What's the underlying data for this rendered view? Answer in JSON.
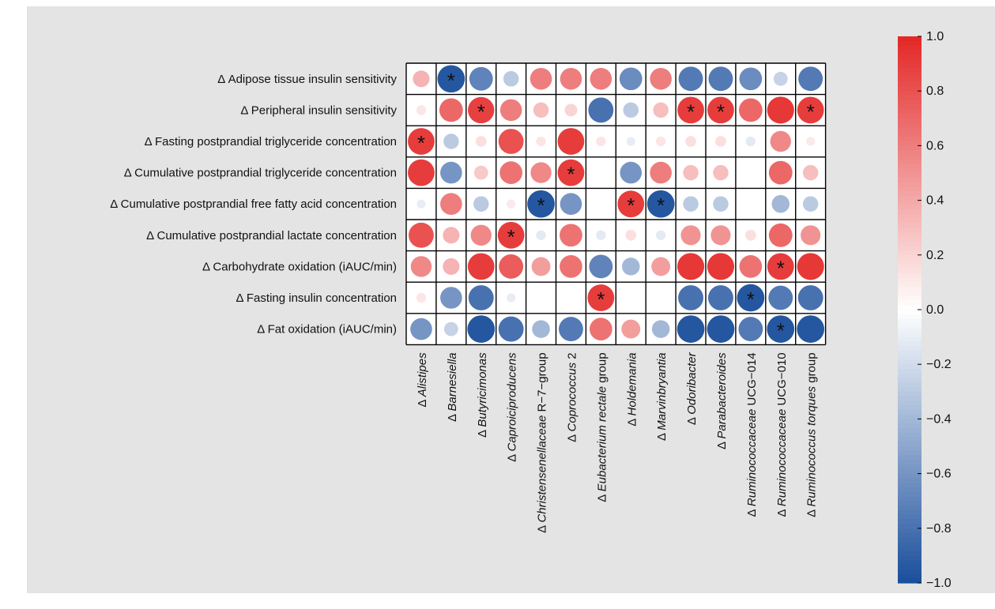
{
  "chart_data": {
    "type": "heatmap",
    "title": "",
    "rows": [
      "Δ Adipose tissue insulin sensitivity",
      "Δ Peripheral insulin sensitivity",
      "Δ Fasting postprandial triglyceride concentration",
      "Δ Cumulative postprandial triglyceride concentration",
      "Δ Cumulative postprandial free fatty acid concentration",
      "Δ Cumulative postprandial lactate concentration",
      "Δ Carbohydrate oxidation (iAUC/min)",
      "Δ Fasting insulin concentration",
      "Δ Fat oxidation (iAUC/min)"
    ],
    "columns": [
      {
        "prefix": "Δ ",
        "italic": "Alistipes",
        "suffix": ""
      },
      {
        "prefix": "Δ ",
        "italic": "Barnesiella",
        "suffix": ""
      },
      {
        "prefix": "Δ ",
        "italic": "Butyricimonas",
        "suffix": ""
      },
      {
        "prefix": "Δ ",
        "italic": "Caproiciproducens",
        "suffix": ""
      },
      {
        "prefix": "Δ ",
        "italic": "Christensenellaceae",
        "suffix": " R−7−group"
      },
      {
        "prefix": "Δ ",
        "italic": "Coprococcus",
        "suffix": " 2"
      },
      {
        "prefix": "Δ ",
        "italic": "Eubacterium rectale",
        "suffix": " group"
      },
      {
        "prefix": "Δ ",
        "italic": "Holdemania",
        "suffix": ""
      },
      {
        "prefix": "Δ ",
        "italic": "Marvinbryantia",
        "suffix": ""
      },
      {
        "prefix": "Δ ",
        "italic": "Odoribacter",
        "suffix": ""
      },
      {
        "prefix": "Δ ",
        "italic": "Parabacteroides",
        "suffix": ""
      },
      {
        "prefix": "Δ ",
        "italic": "Ruminococcaceae",
        "suffix": " UCG−014"
      },
      {
        "prefix": "Δ ",
        "italic": "Ruminococcaceae",
        "suffix": " UCG−010"
      },
      {
        "prefix": "Δ ",
        "italic": "Ruminococcus torques",
        "suffix": " group"
      }
    ],
    "values": [
      [
        0.35,
        -0.95,
        -0.7,
        -0.3,
        0.6,
        0.6,
        0.6,
        -0.65,
        0.6,
        -0.75,
        -0.75,
        -0.65,
        -0.25,
        -0.75
      ],
      [
        0.12,
        0.7,
        0.88,
        0.6,
        0.3,
        0.2,
        -0.8,
        -0.3,
        0.3,
        0.9,
        0.9,
        0.7,
        0.92,
        0.9
      ],
      [
        0.9,
        -0.3,
        0.15,
        0.8,
        0.12,
        0.9,
        0.12,
        -0.1,
        0.12,
        0.15,
        0.15,
        -0.12,
        0.55,
        0.1
      ],
      [
        0.9,
        -0.6,
        0.25,
        0.65,
        0.55,
        0.9,
        0.0,
        -0.6,
        0.6,
        0.3,
        0.3,
        0.0,
        0.7,
        0.3
      ],
      [
        -0.1,
        0.6,
        -0.3,
        0.1,
        -0.95,
        -0.6,
        0.0,
        0.9,
        -0.95,
        -0.3,
        -0.3,
        0.0,
        -0.4,
        -0.3
      ],
      [
        0.8,
        0.35,
        0.55,
        0.9,
        -0.12,
        0.65,
        -0.12,
        0.15,
        -0.12,
        0.5,
        0.5,
        0.15,
        0.7,
        0.5
      ],
      [
        0.55,
        0.35,
        0.9,
        0.75,
        0.45,
        0.65,
        -0.7,
        -0.4,
        0.45,
        0.92,
        0.92,
        0.65,
        0.9,
        0.92
      ],
      [
        0.12,
        -0.6,
        -0.8,
        -0.1,
        0.0,
        0.0,
        0.9,
        0.0,
        0.0,
        -0.8,
        -0.8,
        -0.95,
        -0.75,
        -0.8
      ],
      [
        -0.6,
        -0.25,
        -0.95,
        -0.8,
        -0.4,
        -0.75,
        0.65,
        0.45,
        -0.4,
        -0.95,
        -0.95,
        -0.75,
        -0.95,
        -0.95
      ]
    ],
    "significant": [
      [
        0,
        1
      ],
      [
        1,
        2
      ],
      [
        1,
        9
      ],
      [
        1,
        10
      ],
      [
        1,
        13
      ],
      [
        2,
        0
      ],
      [
        3,
        5
      ],
      [
        4,
        4
      ],
      [
        4,
        7
      ],
      [
        4,
        8
      ],
      [
        5,
        3
      ],
      [
        6,
        12
      ],
      [
        7,
        6
      ],
      [
        7,
        11
      ],
      [
        8,
        12
      ]
    ],
    "significance_marker": "*",
    "colorbar": {
      "range": [
        -1.0,
        1.0
      ],
      "ticks": [
        "−1.0",
        "−0.8",
        "−0.6",
        "−0.4",
        "−0.2",
        "0.0",
        "0.2",
        "0.4",
        "0.6",
        "0.8",
        "1.0"
      ],
      "tick_values": [
        -1.0,
        -0.8,
        -0.6,
        -0.4,
        -0.2,
        0.0,
        0.2,
        0.4,
        0.6,
        0.8,
        1.0
      ],
      "colors": {
        "negative": "#1a4e9c",
        "neutral": "#ffffff",
        "positive": "#e32726"
      }
    },
    "grid": true,
    "legend_position": "right"
  }
}
